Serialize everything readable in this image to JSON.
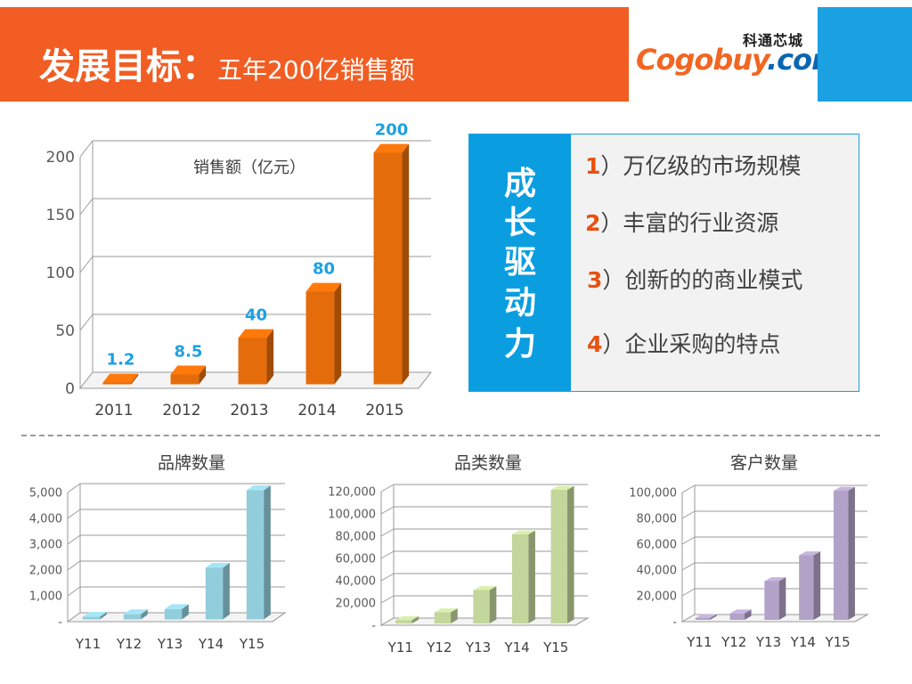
{
  "header": {
    "title_main": "发展目标：",
    "title_sub": "五年200亿销售额"
  },
  "logo": {
    "cn": "科通芯城",
    "en_main": "Cogobuy",
    "en_dot": ".com"
  },
  "drivers": {
    "side_chars": [
      "成",
      "长",
      "驱",
      "动",
      "力"
    ],
    "items": [
      {
        "num": "1",
        "text": "）万亿级的市场规模"
      },
      {
        "num": "2",
        "text": "）丰富的行业资源"
      },
      {
        "num": "3",
        "text": "）创新的的商业模式"
      },
      {
        "num": "4",
        "text": "）企业采购的特点"
      }
    ],
    "accent": "#e8500f",
    "side_color": "#0a9ee0"
  },
  "chart_data": [
    {
      "type": "bar",
      "title": "销售额（亿元）",
      "categories": [
        "2011",
        "2012",
        "2013",
        "2014",
        "2015"
      ],
      "values": [
        1.2,
        8.5,
        40,
        80,
        200
      ],
      "data_labels": [
        "1.2",
        "8.5",
        "40",
        "80",
        "200"
      ],
      "yticks": [
        "0",
        "50",
        "100",
        "150",
        "200"
      ],
      "ylim": [
        0,
        200
      ],
      "grid": true,
      "bar_color": "#e46c0a",
      "label_color": "#1ba1e2"
    },
    {
      "type": "bar",
      "title": "品牌数量",
      "categories": [
        "Y11",
        "Y12",
        "Y13",
        "Y14",
        "Y15"
      ],
      "values": [
        100,
        200,
        400,
        2000,
        5000
      ],
      "yticks": [
        "-",
        "1,000",
        "2,000",
        "3,000",
        "4,000",
        "5,000"
      ],
      "ylim": [
        0,
        5000
      ],
      "grid": true,
      "bar_color": "#92cddc"
    },
    {
      "type": "bar",
      "title": "品类数量",
      "categories": [
        "Y11",
        "Y12",
        "Y13",
        "Y14",
        "Y15"
      ],
      "values": [
        3000,
        10000,
        30000,
        80000,
        120000
      ],
      "yticks": [
        "-",
        "20,000",
        "40,000",
        "60,000",
        "80,000",
        "100,000",
        "120,000"
      ],
      "ylim": [
        0,
        120000
      ],
      "grid": true,
      "bar_color": "#c3d69b"
    },
    {
      "type": "bar",
      "title": "客户数量",
      "categories": [
        "Y11",
        "Y12",
        "Y13",
        "Y14",
        "Y15"
      ],
      "values": [
        1000,
        5000,
        30000,
        50000,
        100000
      ],
      "yticks": [
        "-",
        "20,000",
        "40,000",
        "60,000",
        "80,000",
        "100,000"
      ],
      "ylim": [
        0,
        100000
      ],
      "grid": true,
      "bar_color": "#b3a2c7"
    }
  ]
}
